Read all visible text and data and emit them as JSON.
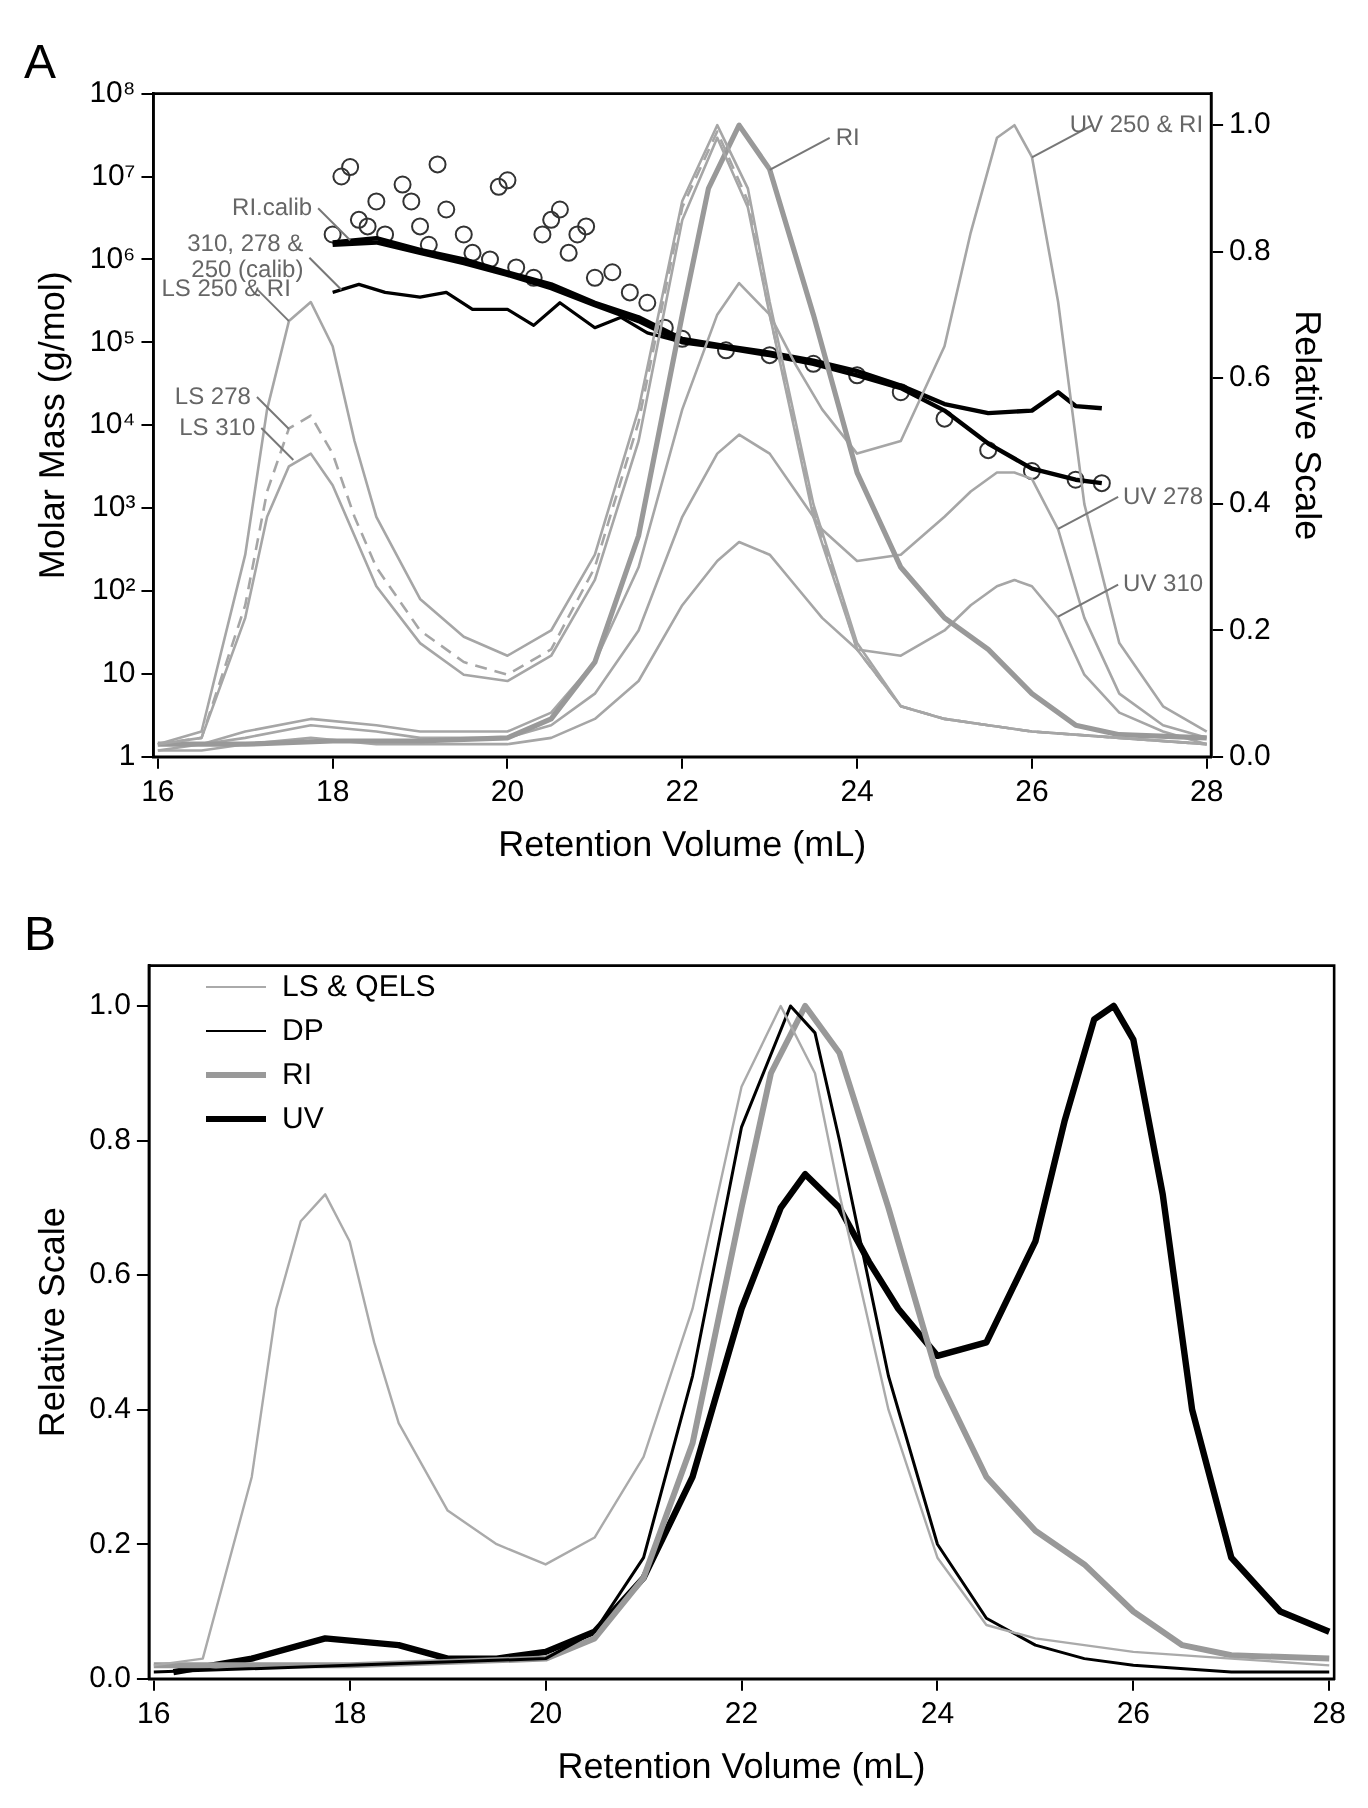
{
  "chart_data": [
    {
      "type": "line",
      "title": "A",
      "xlabel": "Retention Volume (mL)",
      "ylabel": "Molar Mass (g/mol)",
      "y2label": "Relative Scale",
      "xlim": [
        15.95,
        28.05
      ],
      "xticks": [
        16,
        18,
        20,
        22,
        24,
        26,
        28
      ],
      "ylim": [
        1,
        100000000
      ],
      "log": "y",
      "yticks": [
        1,
        10,
        {
          "value": 100,
          "label": "10²"
        },
        {
          "value": 1000,
          "label": "10³"
        },
        {
          "value": 10000,
          "label": "10⁴"
        },
        {
          "value": 100000,
          "label": "10⁵"
        },
        {
          "value": 1000000,
          "label": "10⁶"
        },
        {
          "value": 10000000,
          "label": "10⁷"
        },
        {
          "value": 100000000,
          "label": "10⁸"
        }
      ],
      "y2lim": [
        0,
        1.05
      ],
      "y2ticks": [
        {
          "value": 0,
          "label": "0.0"
        },
        0.2,
        0.4,
        0.6,
        0.8,
        {
          "value": 1,
          "label": "1.0"
        }
      ],
      "grid": false,
      "legend": false,
      "series": [
        {
          "axis": "y2",
          "color": "#a6a6a6",
          "x": [
            16,
            16.5,
            17,
            17.25,
            17.5,
            17.75,
            18,
            18.25,
            18.5,
            19,
            19.5,
            20,
            20.5,
            21,
            21.5,
            22,
            22.4,
            22.75,
            23,
            23.5,
            24,
            24.5,
            25,
            25.5,
            26,
            27,
            28
          ],
          "values": [
            0.02,
            0.04,
            0.32,
            0.55,
            0.69,
            0.72,
            0.65,
            0.5,
            0.38,
            0.25,
            0.19,
            0.16,
            0.2,
            0.32,
            0.55,
            0.88,
            1.0,
            0.9,
            0.72,
            0.4,
            0.18,
            0.08,
            0.06,
            0.05,
            0.04,
            0.03,
            0.02
          ]
        },
        {
          "axis": "y2",
          "color": "#a6a6a6",
          "line_style": "dashed",
          "x": [
            16,
            16.5,
            17,
            17.25,
            17.5,
            17.75,
            18,
            18.25,
            18.5,
            19,
            19.5,
            20,
            20.5,
            21,
            21.5,
            22,
            22.4,
            22.75,
            23,
            23.5,
            24,
            24.5,
            25,
            25.5,
            26,
            27,
            28
          ],
          "values": [
            0.02,
            0.03,
            0.24,
            0.42,
            0.52,
            0.54,
            0.48,
            0.38,
            0.3,
            0.2,
            0.15,
            0.13,
            0.17,
            0.3,
            0.53,
            0.87,
            0.99,
            0.88,
            0.7,
            0.39,
            0.17,
            0.08,
            0.06,
            0.05,
            0.04,
            0.03,
            0.02
          ]
        },
        {
          "axis": "y2",
          "color": "#a6a6a6",
          "x": [
            16,
            16.5,
            17,
            17.25,
            17.5,
            17.75,
            18,
            18.25,
            18.5,
            19,
            19.5,
            20,
            20.5,
            21,
            21.5,
            22,
            22.4,
            22.75,
            23,
            23.5,
            24,
            24.5,
            25,
            25.5,
            26,
            27,
            28
          ],
          "values": [
            0.02,
            0.03,
            0.22,
            0.38,
            0.46,
            0.48,
            0.43,
            0.35,
            0.27,
            0.18,
            0.13,
            0.12,
            0.16,
            0.28,
            0.5,
            0.85,
            0.98,
            0.87,
            0.7,
            0.38,
            0.17,
            0.08,
            0.06,
            0.05,
            0.04,
            0.03,
            0.02
          ]
        },
        {
          "axis": "y2",
          "color": "#999999",
          "x": [
            16,
            17,
            18,
            19,
            20,
            20.5,
            21,
            21.5,
            22,
            22.3,
            22.65,
            23,
            23.5,
            24,
            24.5,
            25,
            25.5,
            26,
            26.5,
            27,
            28
          ],
          "values": [
            0.02,
            0.02,
            0.025,
            0.025,
            0.03,
            0.06,
            0.15,
            0.35,
            0.7,
            0.9,
            1.0,
            0.93,
            0.7,
            0.45,
            0.3,
            0.22,
            0.17,
            0.1,
            0.05,
            0.035,
            0.03
          ]
        },
        {
          "axis": "y2",
          "color": "#a6a6a6",
          "x": [
            16,
            16.5,
            17,
            17.75,
            18.5,
            19,
            19.5,
            20,
            20.5,
            21,
            21.5,
            22,
            22.4,
            22.65,
            23,
            23.3,
            23.6,
            24,
            24.5,
            25,
            25.3,
            25.6,
            25.8,
            26,
            26.3,
            26.6,
            27,
            27.5,
            28
          ],
          "values": [
            0.02,
            0.02,
            0.04,
            0.06,
            0.05,
            0.04,
            0.04,
            0.04,
            0.07,
            0.15,
            0.3,
            0.55,
            0.7,
            0.75,
            0.7,
            0.62,
            0.55,
            0.48,
            0.5,
            0.65,
            0.83,
            0.98,
            1.0,
            0.95,
            0.72,
            0.4,
            0.18,
            0.08,
            0.04
          ]
        },
        {
          "axis": "y2",
          "color": "#a6a6a6",
          "x": [
            16,
            16.5,
            17,
            17.75,
            18.5,
            19,
            19.5,
            20,
            20.5,
            21,
            21.5,
            22,
            22.4,
            22.65,
            23,
            23.3,
            23.6,
            24,
            24.5,
            25,
            25.3,
            25.6,
            25.8,
            26,
            26.3,
            26.6,
            27,
            27.5,
            28
          ],
          "values": [
            0.01,
            0.02,
            0.03,
            0.05,
            0.04,
            0.03,
            0.03,
            0.03,
            0.05,
            0.1,
            0.2,
            0.38,
            0.48,
            0.51,
            0.48,
            0.42,
            0.36,
            0.31,
            0.32,
            0.38,
            0.42,
            0.45,
            0.45,
            0.44,
            0.36,
            0.22,
            0.1,
            0.05,
            0.03
          ]
        },
        {
          "axis": "y2",
          "color": "#a6a6a6",
          "x": [
            16,
            16.5,
            17,
            17.75,
            18.5,
            19,
            19.5,
            20,
            20.5,
            21,
            21.5,
            22,
            22.4,
            22.65,
            23,
            23.3,
            23.6,
            24,
            24.5,
            25,
            25.3,
            25.6,
            25.8,
            26,
            26.3,
            26.6,
            27,
            27.5,
            28
          ],
          "values": [
            0.01,
            0.01,
            0.02,
            0.03,
            0.02,
            0.02,
            0.02,
            0.02,
            0.03,
            0.06,
            0.12,
            0.24,
            0.31,
            0.34,
            0.32,
            0.27,
            0.22,
            0.17,
            0.16,
            0.2,
            0.24,
            0.27,
            0.28,
            0.27,
            0.22,
            0.13,
            0.07,
            0.04,
            0.02
          ]
        },
        {
          "color": "#000000",
          "x": [
            18,
            18.5,
            19,
            19.5,
            20,
            20.5,
            21,
            21.5,
            22,
            22.5,
            23,
            23.5,
            24,
            24.5,
            25,
            25.5,
            26,
            26.3,
            26.5,
            26.8
          ],
          "values": [
            1600000,
            1800000,
            1300000,
            1000000,
            700000,
            500000,
            300000,
            200000,
            110000,
            90000,
            75000,
            60000,
            45000,
            30000,
            18000,
            14000,
            15000,
            25000,
            17000,
            16000
          ]
        },
        {
          "color": "#000000",
          "x": [
            18,
            18.5,
            19,
            19.5,
            20,
            20.5,
            21,
            21.5,
            22,
            22.5,
            23,
            23.5,
            24,
            24.5,
            25,
            25.5,
            26,
            26.5,
            26.8
          ],
          "values": [
            1500000,
            1600000,
            1200000,
            900000,
            650000,
            450000,
            280000,
            180000,
            100000,
            85000,
            70000,
            55000,
            40000,
            28000,
            15000,
            6000,
            3000,
            2200,
            2000
          ]
        },
        {
          "color": "#000000",
          "x": [
            18,
            18.3,
            18.6,
            19,
            19.3,
            19.6,
            20,
            20.3,
            20.6,
            21,
            21.3,
            21.6,
            22
          ],
          "values": [
            400000,
            500000,
            400000,
            350000,
            400000,
            250000,
            250000,
            160000,
            300000,
            150000,
            200000,
            130000,
            100000
          ]
        },
        {
          "type": "scatter",
          "marker": "circle",
          "color": "#333333",
          "x": [
            18.0,
            18.1,
            18.2,
            18.3,
            18.4,
            18.5,
            18.6,
            18.8,
            18.9,
            19.0,
            19.1,
            19.2,
            19.3,
            19.5,
            19.6,
            19.8,
            19.9,
            20.0,
            20.1,
            20.3,
            20.4,
            20.5,
            20.6,
            20.7,
            20.8,
            20.9,
            21.0,
            21.2,
            21.4,
            21.6,
            21.8,
            22.0,
            22.5,
            23.0,
            23.5,
            24.0,
            24.5,
            25.0,
            25.5,
            26.0,
            26.5,
            26.8
          ],
          "values": [
            2000000,
            10000000,
            13000000,
            3000000,
            2500000,
            5000000,
            2000000,
            8000000,
            5000000,
            2500000,
            1500000,
            14000000,
            4000000,
            2000000,
            1200000,
            1000000,
            7500000,
            9000000,
            800000,
            600000,
            2000000,
            3000000,
            4000000,
            1200000,
            2000000,
            2500000,
            600000,
            700000,
            400000,
            300000,
            150000,
            110000,
            80000,
            70000,
            55000,
            40000,
            25000,
            12000,
            5000,
            2800,
            2200,
            2000
          ]
        }
      ],
      "annotations": [
        {
          "text": "RI.calib",
          "x": 18.2,
          "y": 1700000
        },
        {
          "text": "310, 278 & 250 (calib)",
          "x": 18.1,
          "y": 430000
        },
        {
          "text": "LS 250 & RI",
          "x": 17.5,
          "y": 180000
        },
        {
          "text": "LS 278",
          "x": 17.5,
          "y": 9000
        },
        {
          "text": "LS 310",
          "x": 17.55,
          "y": 3800
        },
        {
          "text": "RI",
          "x": 23.0,
          "y": 12000000
        },
        {
          "text": "UV 250 & RI",
          "x": 26.0,
          "y": 17000000
        },
        {
          "text": "UV 278",
          "x": 26.3,
          "y": 560
        },
        {
          "text": "UV 310",
          "x": 26.3,
          "y": 49
        }
      ]
    },
    {
      "type": "line",
      "title": "B",
      "xlabel": "Retention Volume (mL)",
      "ylabel": "Relative Scale",
      "xlim": [
        15.95,
        28.05
      ],
      "xticks": [
        16,
        18,
        20,
        22,
        24,
        26,
        28
      ],
      "ylim": [
        0,
        1.06
      ],
      "yticks": [
        {
          "value": 0,
          "label": "0.0"
        },
        0.2,
        0.4,
        0.6,
        0.8,
        {
          "value": 1,
          "label": "1.0"
        }
      ],
      "grid": false,
      "legend": "top left",
      "series": [
        {
          "name": "LS & QELS",
          "color": "#aaaaaa",
          "x": [
            16,
            16.5,
            17,
            17.25,
            17.5,
            17.75,
            18,
            18.25,
            18.5,
            19,
            19.5,
            20,
            20.5,
            21,
            21.5,
            22,
            22.4,
            22.75,
            23,
            23.5,
            24,
            24.5,
            25,
            25.5,
            26,
            27,
            28
          ],
          "values": [
            0.02,
            0.03,
            0.3,
            0.55,
            0.68,
            0.72,
            0.65,
            0.5,
            0.38,
            0.25,
            0.2,
            0.17,
            0.21,
            0.33,
            0.55,
            0.88,
            1.0,
            0.9,
            0.72,
            0.4,
            0.18,
            0.08,
            0.06,
            0.05,
            0.04,
            0.03,
            0.02
          ]
        },
        {
          "name": "DP",
          "color": "#000000",
          "x": [
            16,
            18,
            20,
            20.5,
            21,
            21.5,
            22,
            22.5,
            22.75,
            23,
            23.5,
            24,
            24.5,
            25,
            25.5,
            26,
            27,
            28
          ],
          "values": [
            0.01,
            0.02,
            0.03,
            0.07,
            0.18,
            0.45,
            0.82,
            1.0,
            0.96,
            0.8,
            0.45,
            0.2,
            0.09,
            0.05,
            0.03,
            0.02,
            0.01,
            0.01
          ]
        },
        {
          "name": "RI",
          "color": "#999999",
          "x": [
            16,
            18,
            20,
            20.5,
            21,
            21.5,
            22,
            22.3,
            22.65,
            23,
            23.5,
            24,
            24.5,
            25,
            25.5,
            26,
            26.5,
            27,
            28
          ],
          "values": [
            0.02,
            0.02,
            0.03,
            0.06,
            0.15,
            0.35,
            0.7,
            0.9,
            1.0,
            0.93,
            0.7,
            0.45,
            0.3,
            0.22,
            0.17,
            0.1,
            0.05,
            0.035,
            0.03
          ]
        },
        {
          "name": "UV",
          "color": "#000000",
          "x": [
            16.2,
            17,
            17.75,
            18.5,
            19,
            19.5,
            20,
            20.5,
            21,
            21.5,
            22,
            22.4,
            22.65,
            23,
            23.3,
            23.6,
            24,
            24.5,
            25,
            25.3,
            25.6,
            25.8,
            26,
            26.3,
            26.6,
            27,
            27.5,
            28
          ],
          "values": [
            0.01,
            0.03,
            0.06,
            0.05,
            0.03,
            0.03,
            0.04,
            0.07,
            0.15,
            0.3,
            0.55,
            0.7,
            0.75,
            0.7,
            0.62,
            0.55,
            0.48,
            0.5,
            0.65,
            0.83,
            0.98,
            1.0,
            0.95,
            0.72,
            0.4,
            0.18,
            0.1,
            0.07
          ]
        }
      ]
    }
  ]
}
